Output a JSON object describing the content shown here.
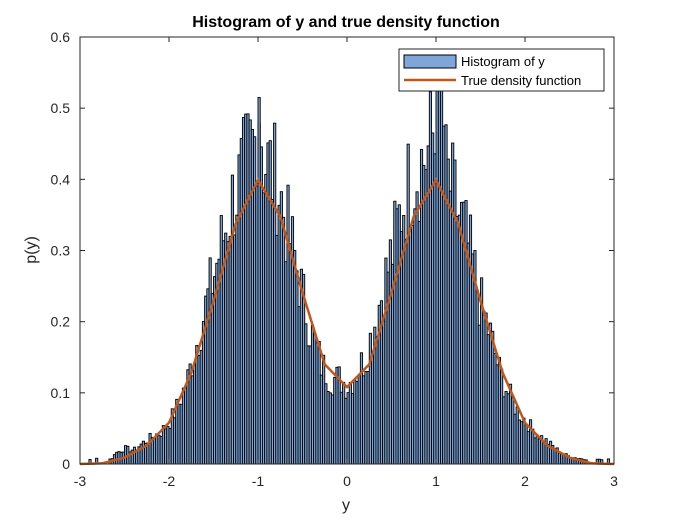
{
  "chart_data": {
    "type": "bar",
    "title": "Histogram of y and true density function",
    "xlabel": "y",
    "ylabel": "p(y)",
    "xlim": [
      -3,
      3
    ],
    "ylim": [
      0,
      0.6
    ],
    "xticks": [
      "-3",
      "-2",
      "-1",
      "0",
      "1",
      "2",
      "3"
    ],
    "yticks": [
      "0",
      "0.1",
      "0.2",
      "0.3",
      "0.4",
      "0.5",
      "0.6"
    ],
    "grid": false,
    "legend_position": "top-right",
    "series": [
      {
        "name": "Histogram of y",
        "kind": "histogram",
        "color": "#7fa6d8",
        "edge_color": "#000000",
        "bin_width": 0.025,
        "x": [
          -2.9,
          -2.6,
          -2.5,
          -2.45,
          -2.4,
          -2.3,
          -2.2,
          -2.1,
          -2.0,
          -1.9,
          -1.8,
          -1.7,
          -1.6,
          -1.5,
          -1.4,
          -1.3,
          -1.2,
          -1.1,
          -1.05,
          -1.0,
          -0.95,
          -0.9,
          -0.8,
          -0.7,
          -0.6,
          -0.5,
          -0.4,
          -0.3,
          -0.2,
          -0.1,
          0.0,
          0.1,
          0.2,
          0.3,
          0.4,
          0.5,
          0.6,
          0.7,
          0.8,
          0.9,
          0.95,
          1.0,
          1.05,
          1.1,
          1.2,
          1.3,
          1.4,
          1.5,
          1.6,
          1.7,
          1.8,
          1.9,
          2.0,
          2.1,
          2.2,
          2.3,
          2.4,
          2.5,
          2.6,
          2.7,
          2.8
        ],
        "y": [
          0.007,
          0.016,
          0.022,
          0.02,
          0.02,
          0.03,
          0.038,
          0.045,
          0.06,
          0.085,
          0.12,
          0.17,
          0.22,
          0.27,
          0.32,
          0.37,
          0.4,
          0.44,
          0.45,
          0.515,
          0.43,
          0.42,
          0.4,
          0.34,
          0.29,
          0.23,
          0.18,
          0.14,
          0.12,
          0.12,
          0.11,
          0.13,
          0.15,
          0.2,
          0.25,
          0.3,
          0.36,
          0.4,
          0.42,
          0.44,
          0.46,
          0.44,
          0.54,
          0.41,
          0.37,
          0.33,
          0.28,
          0.22,
          0.18,
          0.13,
          0.1,
          0.075,
          0.06,
          0.045,
          0.035,
          0.025,
          0.015,
          0.01,
          0.008,
          0.005,
          0.006
        ]
      },
      {
        "name": "True density function",
        "kind": "line",
        "color": "#c2571a",
        "x": [
          -3.0,
          -2.75,
          -2.5,
          -2.25,
          -2.0,
          -1.75,
          -1.5,
          -1.25,
          -1.0,
          -0.75,
          -0.5,
          -0.25,
          0.0,
          0.25,
          0.5,
          0.75,
          1.0,
          1.25,
          1.5,
          1.75,
          2.0,
          2.25,
          2.5,
          2.75,
          3.0
        ],
        "y": [
          0.0,
          0.001,
          0.009,
          0.026,
          0.058,
          0.128,
          0.229,
          0.338,
          0.399,
          0.348,
          0.241,
          0.14,
          0.108,
          0.14,
          0.241,
          0.348,
          0.399,
          0.338,
          0.229,
          0.128,
          0.058,
          0.026,
          0.009,
          0.001,
          0.0
        ]
      }
    ]
  }
}
